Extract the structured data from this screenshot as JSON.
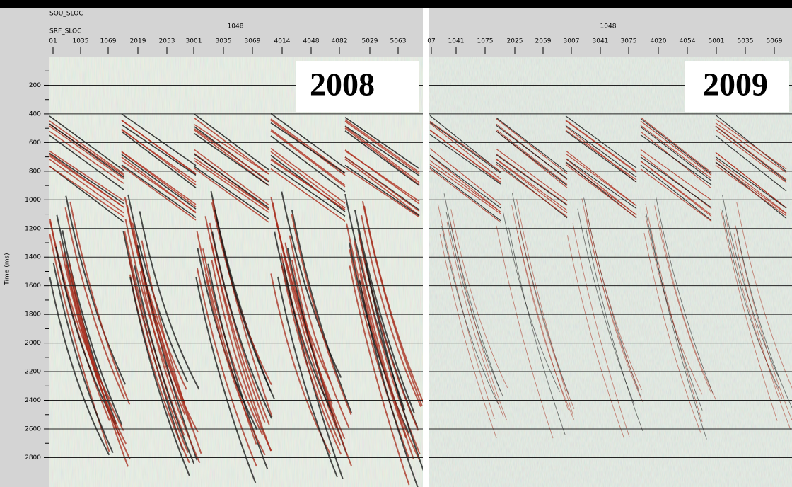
{
  "header": {
    "source_label": "SOU_SLOC",
    "receiver_label": "SRF_SLOC"
  },
  "panels": [
    {
      "source_value": "1048",
      "year": "2008",
      "receiver_ticks": [
        "01",
        "1035",
        "1069",
        "2019",
        "2053",
        "3001",
        "3035",
        "3069",
        "4014",
        "4048",
        "4082",
        "5029",
        "5063"
      ]
    },
    {
      "source_value": "1048",
      "year": "2009",
      "receiver_ticks": [
        "07",
        "1041",
        "1075",
        "2025",
        "2059",
        "3007",
        "3041",
        "3075",
        "4020",
        "4054",
        "5001",
        "5035",
        "5069"
      ]
    }
  ],
  "y_axis": {
    "label": "Time (ms)",
    "ticks": [
      200,
      400,
      600,
      800,
      1000,
      1200,
      1400,
      1600,
      1800,
      2000,
      2200,
      2400,
      2600,
      2800
    ]
  }
}
